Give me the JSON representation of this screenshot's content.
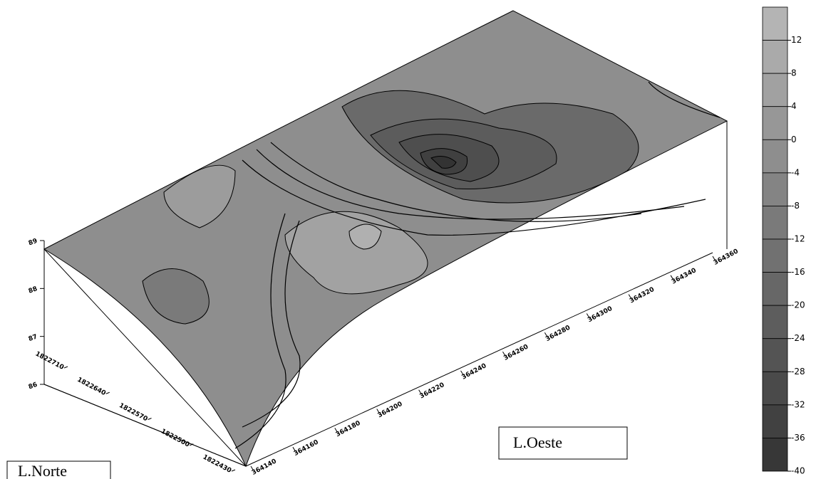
{
  "chart_data": {
    "type": "surface3d",
    "annotations": [
      "L.Oeste",
      "L.Norte"
    ],
    "xlim": [
      364140,
      364360
    ],
    "xticks": [
      364140,
      364160,
      364180,
      364200,
      364220,
      364240,
      364260,
      364280,
      364300,
      364320,
      364340,
      364360
    ],
    "ylim": [
      1822430,
      1822710
    ],
    "yticks": [
      1822710,
      1822640,
      1822570,
      1822500,
      1822430
    ],
    "zlim": [
      86,
      89
    ],
    "zticks": [
      86,
      87,
      88,
      89
    ],
    "colorbar": {
      "lim": [
        -40,
        16
      ],
      "ticks": [
        12,
        8,
        4,
        0,
        -4,
        -8,
        -12,
        -16,
        -20,
        -24,
        -28,
        -32,
        -36,
        -40
      ]
    }
  }
}
